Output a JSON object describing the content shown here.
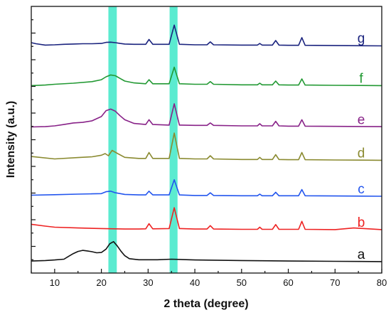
{
  "chart_data": {
    "type": "line",
    "xlabel": "2 theta (degree)",
    "ylabel": "Intensity (a.u.)",
    "xlim": [
      5,
      80
    ],
    "xticks": [
      10,
      20,
      30,
      40,
      50,
      60,
      70,
      80
    ],
    "ylim": [
      0,
      100
    ],
    "yticks_shown": false,
    "grid": false,
    "legend": "inline labels at right",
    "highlight_bands": [
      {
        "x0": 21.5,
        "x1": 23.3,
        "color": "#3ee8c8"
      },
      {
        "x0": 34.6,
        "x1": 36.3,
        "color": "#3ee8c8"
      }
    ],
    "series": [
      {
        "name": "a",
        "color": "#111111",
        "offset": 4,
        "x": [
          5,
          8,
          10,
          12,
          13,
          14,
          15,
          16,
          17,
          18,
          19,
          20,
          21,
          21.8,
          22.6,
          23.4,
          24.2,
          25,
          26,
          28,
          30,
          32,
          35,
          40,
          50,
          60,
          70,
          80
        ],
        "y": [
          0.5,
          0.7,
          0.9,
          1.2,
          2.3,
          3.3,
          4.1,
          4.5,
          4.3,
          4.0,
          3.6,
          3.7,
          5.0,
          7.0,
          7.8,
          6.2,
          4.2,
          2.5,
          1.4,
          1.0,
          1.0,
          1.0,
          1.2,
          0.9,
          0.7,
          0.5,
          0.4,
          0.3
        ]
      },
      {
        "name": "b",
        "color": "#ee2222",
        "offset": 16,
        "x": [
          5,
          8,
          10,
          15,
          20,
          25,
          28,
          29.5,
          30.2,
          31,
          34.5,
          35.6,
          36.7,
          40,
          42.6,
          43.3,
          44,
          50,
          53.4,
          53.9,
          54.4,
          56.6,
          57.3,
          58,
          60,
          62.2,
          62.9,
          63.6,
          70,
          74,
          80
        ],
        "y": [
          2.3,
          1.6,
          1.2,
          0.9,
          0.7,
          0.5,
          0.5,
          0.6,
          2.5,
          0.6,
          0.7,
          8.5,
          0.7,
          0.5,
          0.5,
          1.8,
          0.5,
          0.4,
          0.4,
          1.2,
          0.4,
          0.4,
          2.2,
          0.4,
          0.4,
          0.4,
          3.4,
          0.4,
          0.3,
          0.9,
          0.3
        ]
      },
      {
        "name": "c",
        "color": "#2255ee",
        "offset": 28.5,
        "x": [
          5,
          10,
          15,
          18,
          20,
          21,
          22,
          23,
          25,
          28,
          29.5,
          30.2,
          31,
          34.5,
          35.6,
          36.7,
          40,
          42.6,
          43.3,
          44,
          50,
          53.4,
          53.9,
          54.4,
          56.6,
          57.3,
          58,
          60,
          62.2,
          62.9,
          63.6,
          70,
          80
        ],
        "y": [
          0.7,
          0.9,
          1.1,
          1.2,
          1.3,
          2.0,
          2.2,
          1.6,
          1.0,
          0.8,
          0.8,
          2.2,
          0.8,
          0.8,
          6.5,
          0.8,
          0.6,
          0.6,
          1.6,
          0.6,
          0.5,
          0.5,
          1.1,
          0.5,
          0.5,
          1.8,
          0.5,
          0.5,
          0.5,
          2.8,
          0.5,
          0.4,
          0.3
        ]
      },
      {
        "name": "d",
        "color": "#8a8a30",
        "offset": 42,
        "x": [
          5,
          10,
          15,
          18,
          20,
          20.8,
          21.5,
          22.3,
          23.5,
          25,
          28,
          29.5,
          30.2,
          31,
          34.5,
          35.6,
          36.7,
          40,
          42.6,
          43.3,
          44,
          50,
          53.4,
          53.9,
          54.4,
          56.6,
          57.3,
          58,
          60,
          62.2,
          62.9,
          63.6,
          70,
          80
        ],
        "y": [
          1.7,
          0.8,
          1.3,
          1.6,
          2.2,
          2.8,
          2.0,
          4.0,
          2.8,
          1.4,
          1.0,
          1.0,
          3.2,
          1.0,
          1.0,
          10.5,
          1.0,
          0.8,
          0.8,
          2.0,
          0.8,
          0.6,
          0.6,
          1.4,
          0.6,
          0.6,
          2.4,
          0.6,
          0.5,
          0.5,
          3.2,
          0.5,
          0.4,
          0.3
        ]
      },
      {
        "name": "e",
        "color": "#882288",
        "offset": 54.5,
        "x": [
          5,
          8,
          10,
          12,
          14,
          16,
          18,
          20,
          21,
          22,
          23,
          24,
          25,
          27,
          29.5,
          30.2,
          31,
          34.5,
          35.6,
          36.7,
          40,
          42.6,
          43.3,
          44,
          50,
          53.4,
          53.9,
          54.4,
          56.6,
          57.3,
          58,
          60,
          62.2,
          62.9,
          63.6,
          70,
          80
        ],
        "y": [
          0.3,
          0.4,
          0.7,
          1.2,
          1.8,
          2.0,
          2.6,
          4.2,
          6.4,
          7.0,
          6.2,
          4.5,
          3.0,
          1.6,
          1.2,
          3.0,
          1.2,
          1.0,
          9.0,
          1.0,
          0.9,
          0.9,
          1.8,
          0.9,
          0.7,
          0.7,
          1.5,
          0.7,
          0.7,
          2.4,
          0.7,
          0.6,
          0.6,
          3.0,
          0.6,
          0.5,
          0.4
        ]
      },
      {
        "name": "f",
        "color": "#229933",
        "offset": 70,
        "x": [
          5,
          8,
          10,
          14,
          18,
          20,
          21,
          22,
          23,
          24,
          25,
          27,
          29.5,
          30.2,
          31,
          34.5,
          35.6,
          36.7,
          40,
          42.6,
          43.3,
          44,
          50,
          53.4,
          53.9,
          54.4,
          56.6,
          57.3,
          58,
          60,
          62.2,
          62.9,
          63.6,
          70,
          80
        ],
        "y": [
          0.3,
          0.5,
          0.8,
          1.2,
          1.8,
          2.5,
          3.6,
          4.3,
          4.0,
          3.0,
          2.0,
          1.3,
          1.0,
          2.5,
          1.0,
          1.0,
          7.2,
          1.0,
          0.8,
          0.8,
          1.8,
          0.8,
          0.6,
          0.6,
          1.2,
          0.6,
          0.6,
          2.0,
          0.6,
          0.5,
          0.5,
          2.8,
          0.5,
          0.4,
          0.3
        ]
      },
      {
        "name": "g",
        "color": "#1a237e",
        "offset": 85,
        "x": [
          5,
          6,
          8,
          10,
          12,
          14,
          16,
          18,
          20,
          21,
          22,
          23,
          24,
          25,
          27,
          29.5,
          30.2,
          31,
          34.5,
          35.6,
          36.7,
          40,
          42.6,
          43.3,
          44,
          50,
          53.4,
          53.9,
          54.4,
          56.6,
          57.3,
          58,
          60,
          62.2,
          62.9,
          63.6,
          70,
          80
        ],
        "y": [
          1.4,
          1.0,
          0.5,
          0.6,
          0.8,
          0.9,
          1.0,
          1.0,
          1.1,
          1.5,
          1.6,
          1.4,
          1.1,
          0.9,
          0.8,
          0.8,
          2.6,
          0.8,
          0.8,
          8.0,
          0.8,
          0.6,
          0.6,
          1.7,
          0.6,
          0.5,
          0.5,
          1.1,
          0.5,
          0.5,
          2.2,
          0.5,
          0.4,
          0.4,
          3.3,
          0.4,
          0.3,
          0.2
        ]
      }
    ]
  }
}
